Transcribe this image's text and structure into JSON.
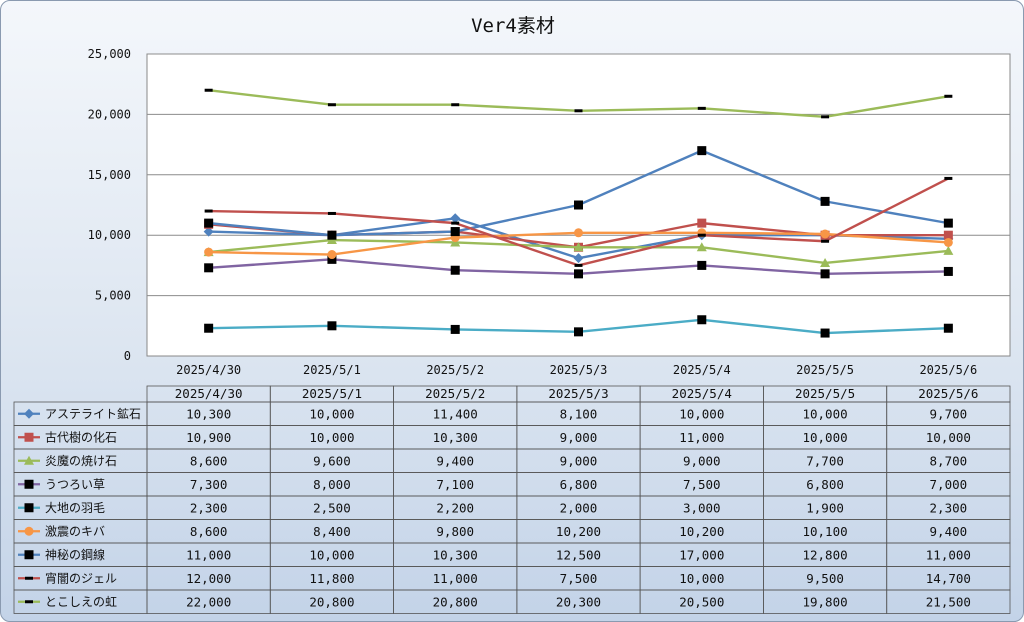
{
  "chart_data": {
    "type": "line",
    "title": "Ver4素材",
    "categories": [
      "2025/4/30",
      "2025/5/1",
      "2025/5/2",
      "2025/5/3",
      "2025/5/4",
      "2025/5/5",
      "2025/5/6"
    ],
    "y_ticks": [
      "0",
      "5,000",
      "10,000",
      "15,000",
      "20,000",
      "25,000"
    ],
    "ylim": [
      0,
      25000
    ],
    "grid": true,
    "legend": "data-table",
    "series": [
      {
        "name": "アステライト鉱石",
        "color": "#4f81bd",
        "marker": "diamond",
        "values": [
          10300,
          10000,
          11400,
          8100,
          10000,
          10000,
          9700
        ],
        "labels": [
          "10,300",
          "10,000",
          "11,400",
          "8,100",
          "10,000",
          "10,000",
          "9,700"
        ]
      },
      {
        "name": "古代樹の化石",
        "color": "#c0504d",
        "marker": "square",
        "values": [
          10900,
          10000,
          10300,
          9000,
          11000,
          10000,
          10000
        ],
        "labels": [
          "10,900",
          "10,000",
          "10,300",
          "9,000",
          "11,000",
          "10,000",
          "10,000"
        ]
      },
      {
        "name": "炎魔の焼け石",
        "color": "#9bbb59",
        "marker": "triangle",
        "values": [
          8600,
          9600,
          9400,
          9000,
          9000,
          7700,
          8700
        ],
        "labels": [
          "8,600",
          "9,600",
          "9,400",
          "9,000",
          "9,000",
          "7,700",
          "8,700"
        ]
      },
      {
        "name": "うつろい草",
        "color": "#8064a2",
        "marker": "square-black",
        "values": [
          7300,
          8000,
          7100,
          6800,
          7500,
          6800,
          7000
        ],
        "labels": [
          "7,300",
          "8,000",
          "7,100",
          "6,800",
          "7,500",
          "6,800",
          "7,000"
        ]
      },
      {
        "name": "大地の羽毛",
        "color": "#4bacc6",
        "marker": "square-black",
        "values": [
          2300,
          2500,
          2200,
          2000,
          3000,
          1900,
          2300
        ],
        "labels": [
          "2,300",
          "2,500",
          "2,200",
          "2,000",
          "3,000",
          "1,900",
          "2,300"
        ]
      },
      {
        "name": "激震のキバ",
        "color": "#f79646",
        "marker": "circle",
        "values": [
          8600,
          8400,
          9800,
          10200,
          10200,
          10100,
          9400
        ],
        "labels": [
          "8,600",
          "8,400",
          "9,800",
          "10,200",
          "10,200",
          "10,100",
          "9,400"
        ]
      },
      {
        "name": "神秘の鋼線",
        "color": "#4f81bd",
        "marker": "square-black",
        "values": [
          11000,
          10000,
          10300,
          12500,
          17000,
          12800,
          11000
        ],
        "labels": [
          "11,000",
          "10,000",
          "10,300",
          "12,500",
          "17,000",
          "12,800",
          "11,000"
        ]
      },
      {
        "name": "宵闇のジェル",
        "color": "#c0504d",
        "marker": "dash",
        "values": [
          12000,
          11800,
          11000,
          7500,
          10000,
          9500,
          14700
        ],
        "labels": [
          "12,000",
          "11,800",
          "11,000",
          "7,500",
          "10,000",
          "9,500",
          "14,700"
        ]
      },
      {
        "name": "とこしえの虹",
        "color": "#9bbb59",
        "marker": "dash",
        "values": [
          22000,
          20800,
          20800,
          20300,
          20500,
          19800,
          21500
        ],
        "labels": [
          "22,000",
          "20,800",
          "20,800",
          "20,300",
          "20,500",
          "19,800",
          "21,500"
        ]
      }
    ]
  }
}
